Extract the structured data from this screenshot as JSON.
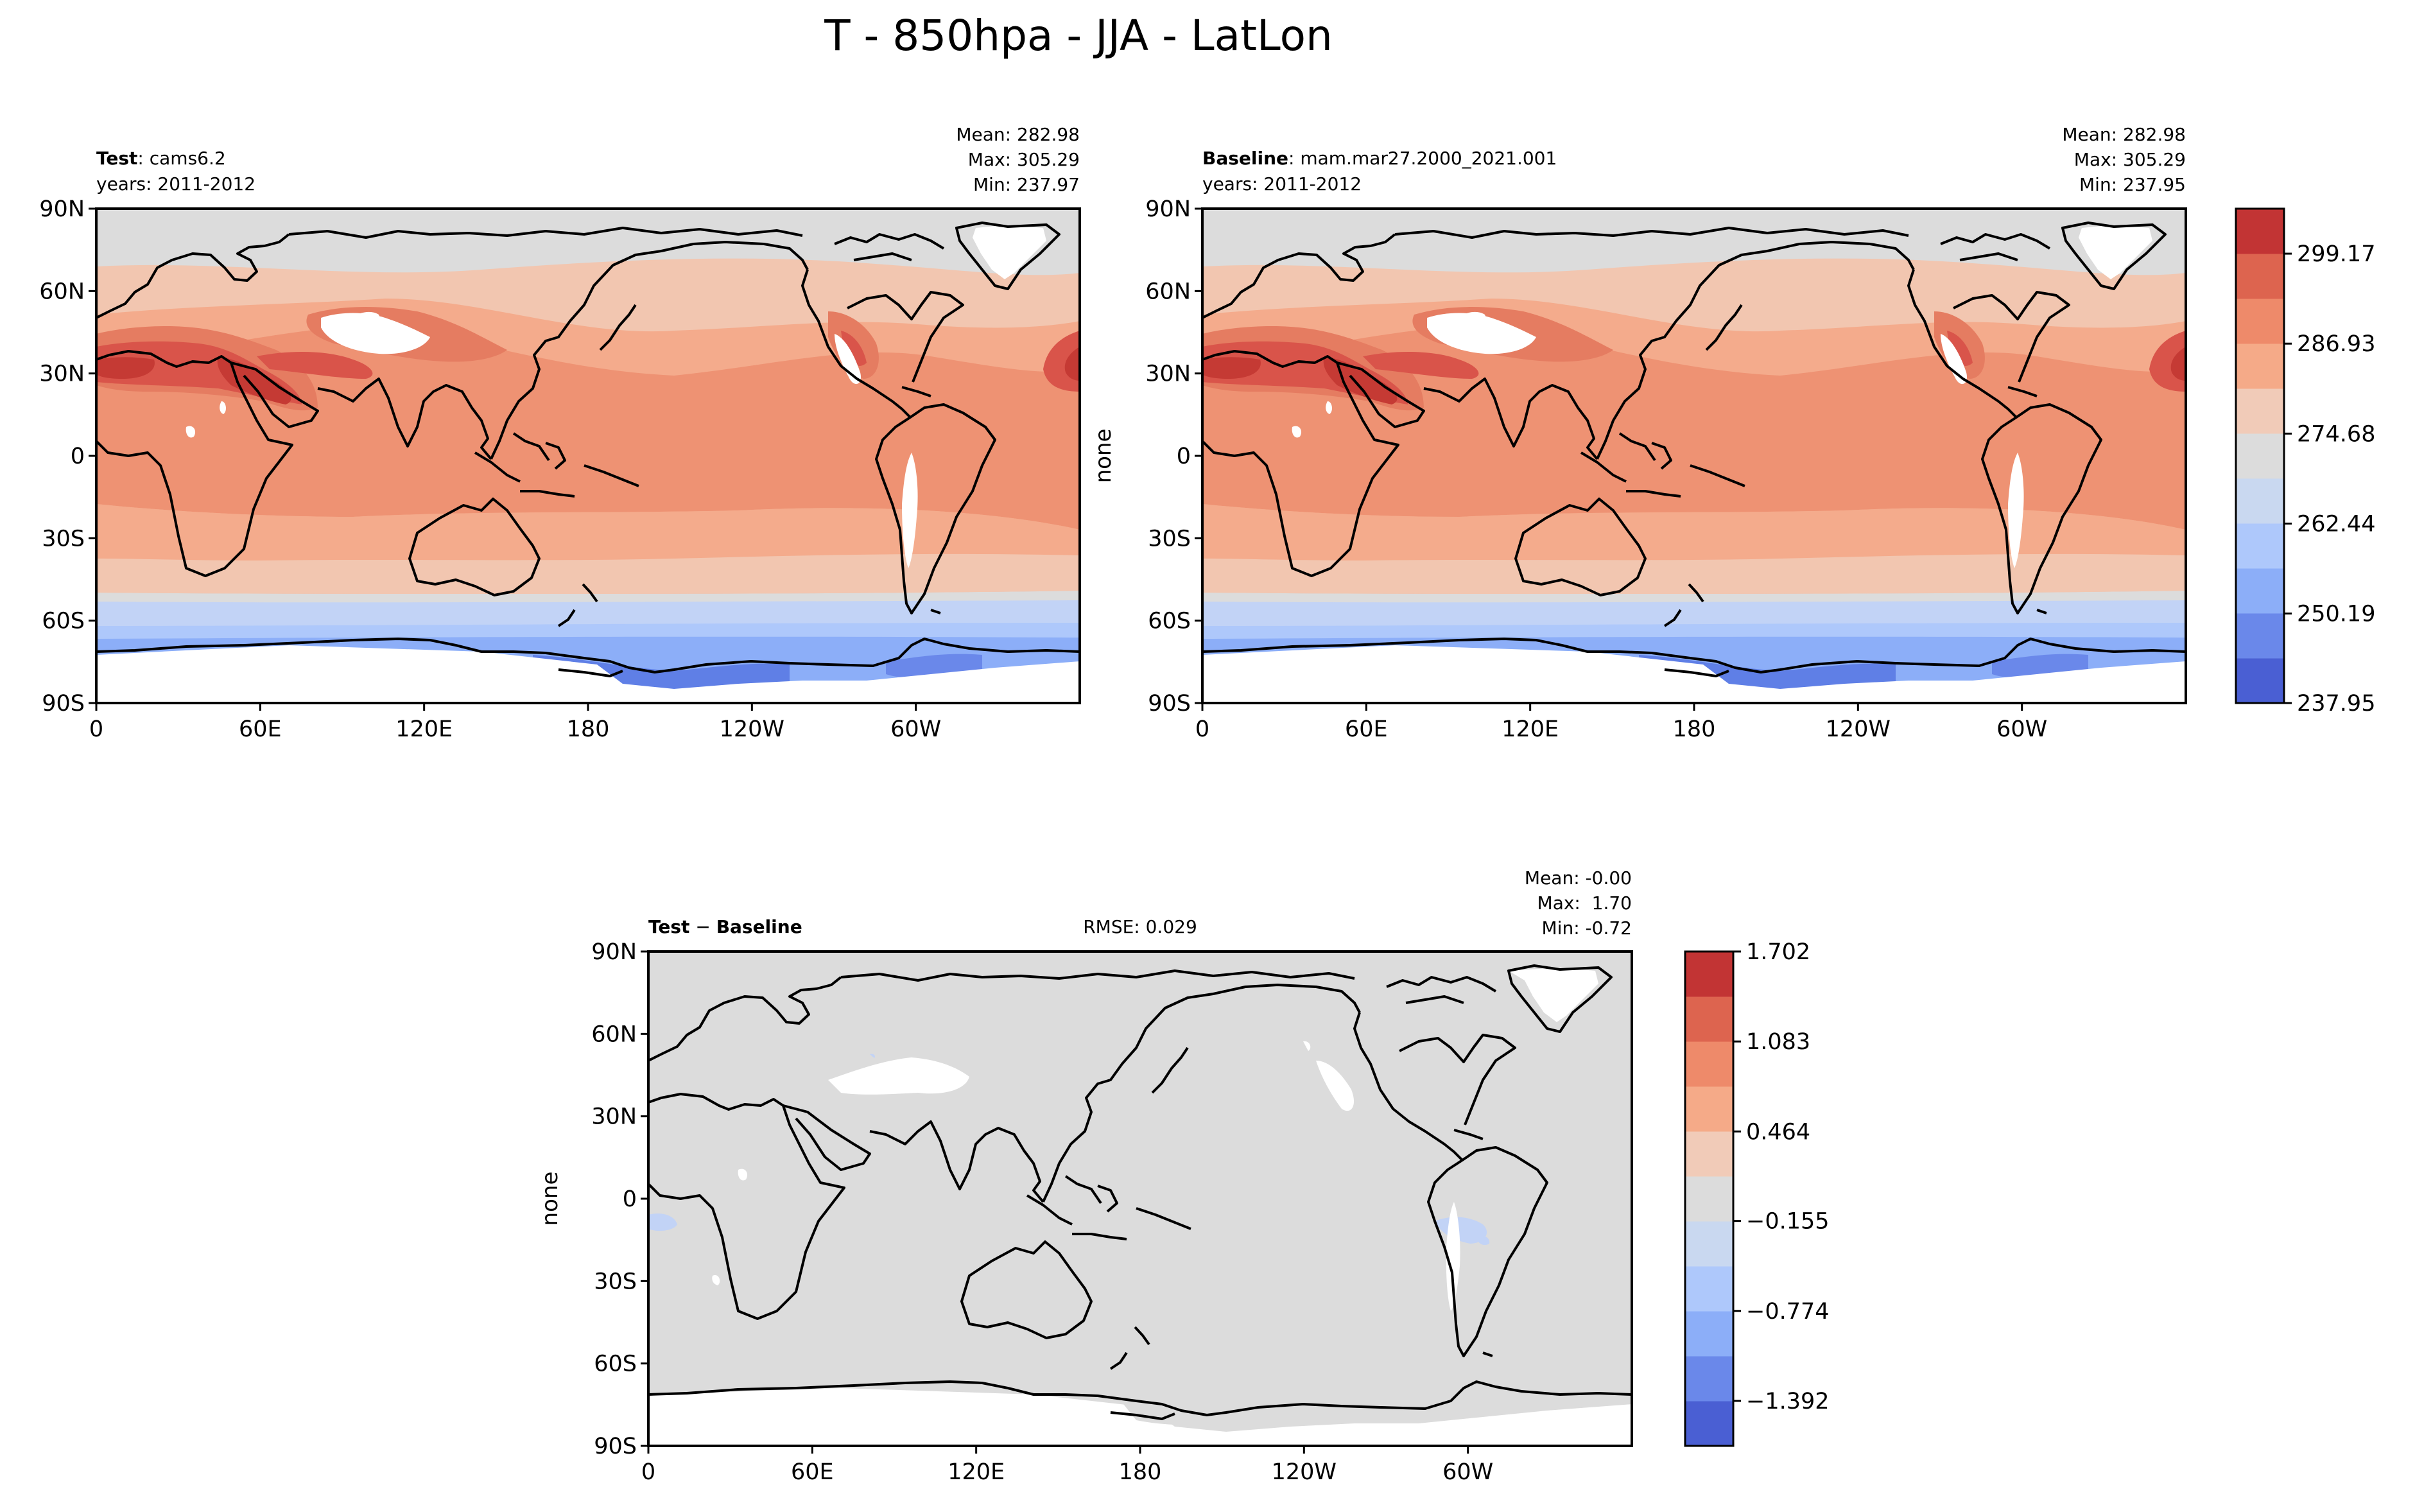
{
  "figure": {
    "title": "T - 850hpa - JJA - LatLon"
  },
  "panels": {
    "test": {
      "label_bold": "Test",
      "label_rest": ": cams6.2",
      "years": "years: 2011-2012",
      "stats": [
        "Mean: 282.98",
        "Max: 305.29",
        "Min: 237.97"
      ],
      "ylabel": ""
    },
    "baseline": {
      "label_bold": "Baseline",
      "label_rest": ": mam.mar27.2000_2021.001",
      "years": "years: 2011-2012",
      "stats": [
        "Mean: 282.98",
        "Max: 305.29",
        "Min: 237.95"
      ],
      "ylabel": "none"
    },
    "diff": {
      "label_bold_1": "Test",
      "label_op": " − ",
      "label_bold_2": "Baseline",
      "rmse": "RMSE: 0.029",
      "stats": [
        "Mean: -0.00",
        "Max:  1.70",
        "Min: -0.72"
      ],
      "ylabel": "none"
    }
  },
  "axes": {
    "lat_ticks": [
      "90N",
      "60N",
      "30N",
      "0",
      "30S",
      "60S",
      "90S"
    ],
    "lon_ticks": [
      "0",
      "60E",
      "120E",
      "180",
      "120W",
      "60W"
    ]
  },
  "colorbars": {
    "abs": {
      "colors": [
        "#4a5fd3",
        "#6a88ea",
        "#8caef8",
        "#aec8fb",
        "#c9d8f0",
        "#dcdcdc",
        "#f1cbb8",
        "#f5aa88",
        "#ee8a6a",
        "#dd644f",
        "#c23434"
      ],
      "ticks": [
        {
          "label": "237.95",
          "frac": 0.0
        },
        {
          "label": "250.19",
          "frac": 0.181
        },
        {
          "label": "262.44",
          "frac": 0.363
        },
        {
          "label": "274.68",
          "frac": 0.545
        },
        {
          "label": "286.93",
          "frac": 0.727
        },
        {
          "label": "299.17",
          "frac": 0.909
        }
      ]
    },
    "diff": {
      "colors": [
        "#4a5fd3",
        "#6a88ea",
        "#8caef8",
        "#aec8fb",
        "#c9d8f0",
        "#dcdcdc",
        "#f1cbb8",
        "#f5aa88",
        "#ee8a6a",
        "#dd644f",
        "#c23434"
      ],
      "ticks": [
        {
          "label": "−1.392",
          "frac": 0.091
        },
        {
          "label": "−0.774",
          "frac": 0.273
        },
        {
          "label": "−0.155",
          "frac": 0.455
        },
        {
          "label": "0.464",
          "frac": 0.636
        },
        {
          "label": "1.083",
          "frac": 0.818
        },
        {
          "label": "1.702",
          "frac": 1.0
        }
      ]
    }
  },
  "map_palette": {
    "deep_blue": "#5f7fe6",
    "blue": "#8caef8",
    "pale_blue": "#c2d3f6",
    "grey": "#dcdcdc",
    "peach": "#f2c6b0",
    "light_salmon": "#f4ab8c",
    "salmon": "#ee9273",
    "deep_salmon": "#e57c61",
    "red": "#d9544a",
    "dark_red": "#c53a34",
    "missing": "#ffffff",
    "coast": "#000000"
  }
}
